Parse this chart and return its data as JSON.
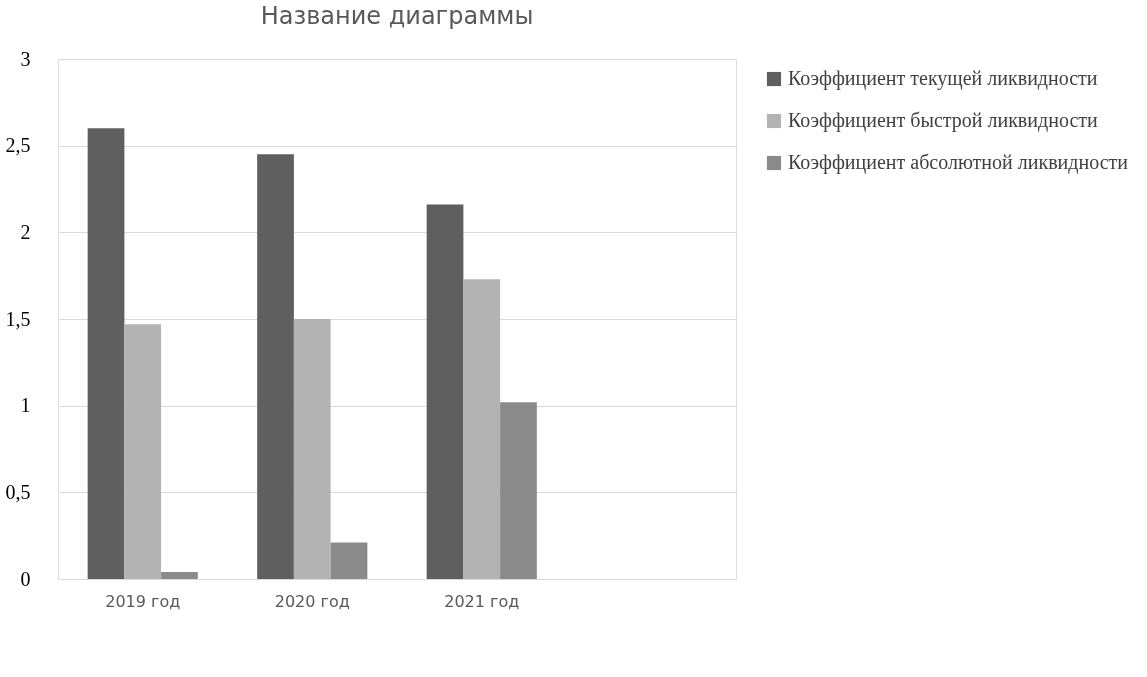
{
  "chart_data": {
    "type": "bar",
    "title": "Название диаграммы",
    "categories": [
      "2019 год",
      "2020 год",
      "2021 год",
      null
    ],
    "series": [
      {
        "name": "Коэффициент текущей ликвидности",
        "color": "#5f5f5f",
        "values": [
          2.6,
          2.45,
          2.16,
          null
        ]
      },
      {
        "name": "Коэффициент быстрой ликвидности",
        "color": "#b3b3b3",
        "values": [
          1.47,
          1.5,
          1.73,
          null
        ]
      },
      {
        "name": "Коэффициент абсолютной ликвидности",
        "color": "#8a8a8a",
        "values": [
          0.04,
          0.21,
          1.02,
          null
        ]
      }
    ],
    "ylim": [
      0,
      3
    ],
    "yticks": [
      0,
      {
        "value": 0.5,
        "label": "0,5"
      },
      1,
      {
        "value": 1.5,
        "label": "1,5"
      },
      2,
      {
        "value": 2.5,
        "label": "2,5"
      },
      3
    ],
    "grid": "y",
    "legend": "right"
  }
}
